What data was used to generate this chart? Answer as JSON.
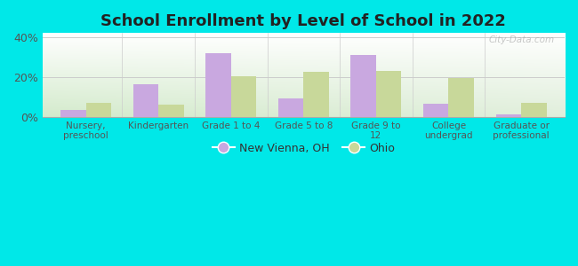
{
  "title": "School Enrollment by Level of School in 2022",
  "categories": [
    "Nursery,\npreschool",
    "Kindergarten",
    "Grade 1 to 4",
    "Grade 5 to 8",
    "Grade 9 to\n12",
    "College\nundergrad",
    "Graduate or\nprofessional"
  ],
  "new_vienna": [
    3.5,
    16.5,
    32.0,
    9.5,
    31.0,
    6.5,
    1.5
  ],
  "ohio": [
    7.0,
    6.0,
    20.5,
    22.5,
    23.0,
    19.5,
    7.0
  ],
  "bar_color_nv": "#c9a8e0",
  "bar_color_oh": "#c8d89a",
  "background_color": "#00e8e8",
  "ylim": [
    0,
    42
  ],
  "yticks": [
    0,
    20,
    40
  ],
  "ytick_labels": [
    "0%",
    "20%",
    "40%"
  ],
  "legend_label_nv": "New Vienna, OH",
  "legend_label_oh": "Ohio",
  "watermark": "City-Data.com",
  "bar_width": 0.35,
  "title_color": "#222222",
  "tick_color": "#555555"
}
